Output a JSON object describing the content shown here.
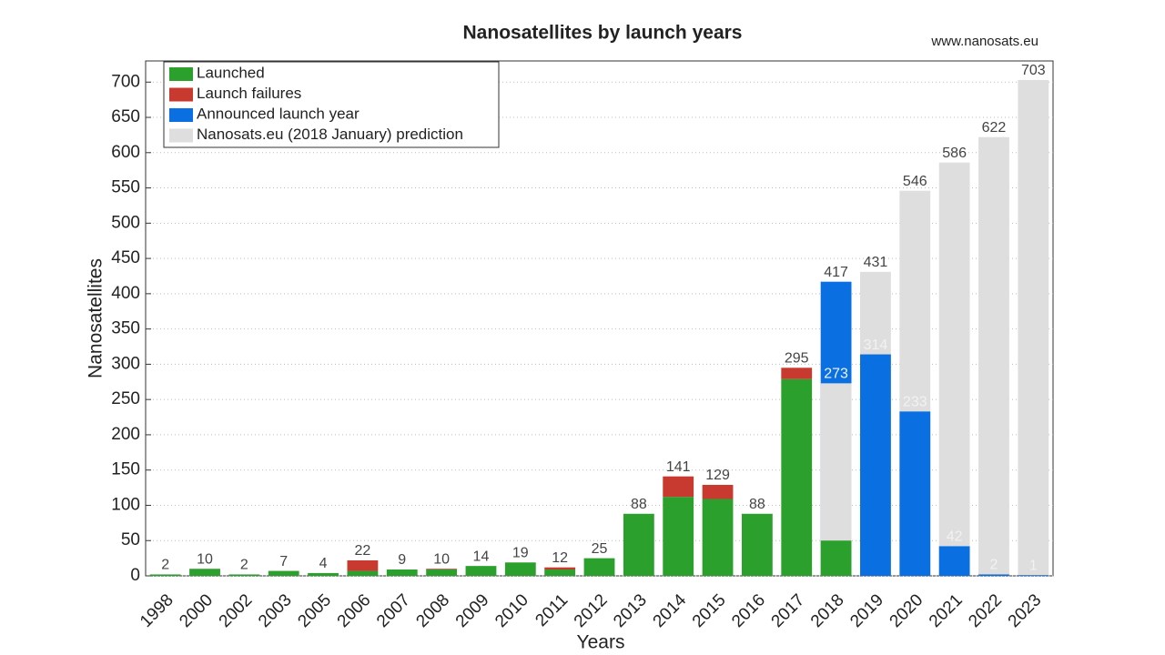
{
  "chart_data": {
    "type": "bar",
    "title": "Nanosatellites by launch years",
    "source": "www.nanosats.eu",
    "x_label": "Years",
    "y_label": "Nanosatellites",
    "categories": [
      "1998",
      "2000",
      "2002",
      "2003",
      "2005",
      "2006",
      "2007",
      "2008",
      "2009",
      "2010",
      "2011",
      "2012",
      "2013",
      "2014",
      "2015",
      "2016",
      "2017",
      "2018",
      "2019",
      "2020",
      "2021",
      "2022",
      "2023"
    ],
    "series": [
      {
        "name": "Launched",
        "color": "#2ca02c",
        "stacked": true,
        "values": [
          2,
          10,
          2,
          7,
          4,
          7,
          9,
          9,
          14,
          19,
          9,
          25,
          88,
          112,
          109,
          88,
          279,
          50,
          null,
          null,
          null,
          null,
          null
        ]
      },
      {
        "name": "Launch failures",
        "color": "#c83a2f",
        "stacked": true,
        "values": [
          null,
          null,
          null,
          null,
          null,
          15,
          null,
          1,
          null,
          null,
          3,
          null,
          null,
          29,
          20,
          null,
          16,
          null,
          null,
          null,
          null,
          null,
          null
        ]
      },
      {
        "name": "Announced launch year",
        "color": "#0a6fe0",
        "stacked": false,
        "values": [
          null,
          null,
          null,
          null,
          null,
          null,
          null,
          null,
          null,
          null,
          null,
          null,
          null,
          null,
          null,
          null,
          null,
          417,
          314,
          233,
          42,
          2,
          1
        ]
      },
      {
        "name": "Nanosats.eu (2018 January) prediction",
        "color": "#dedede",
        "stacked": false,
        "values": [
          null,
          null,
          null,
          null,
          null,
          null,
          null,
          null,
          null,
          null,
          null,
          null,
          null,
          null,
          null,
          null,
          null,
          273,
          431,
          546,
          586,
          622,
          703
        ]
      }
    ],
    "totals": [
      2,
      10,
      2,
      7,
      4,
      22,
      9,
      10,
      14,
      19,
      12,
      25,
      88,
      141,
      129,
      88,
      295,
      null,
      null,
      null,
      null,
      null,
      null
    ],
    "ylim": [
      0,
      730
    ],
    "yticks": [
      0,
      50,
      100,
      150,
      200,
      250,
      300,
      350,
      400,
      450,
      500,
      550,
      600,
      650,
      700
    ],
    "grid": true,
    "legend": "upper left"
  }
}
